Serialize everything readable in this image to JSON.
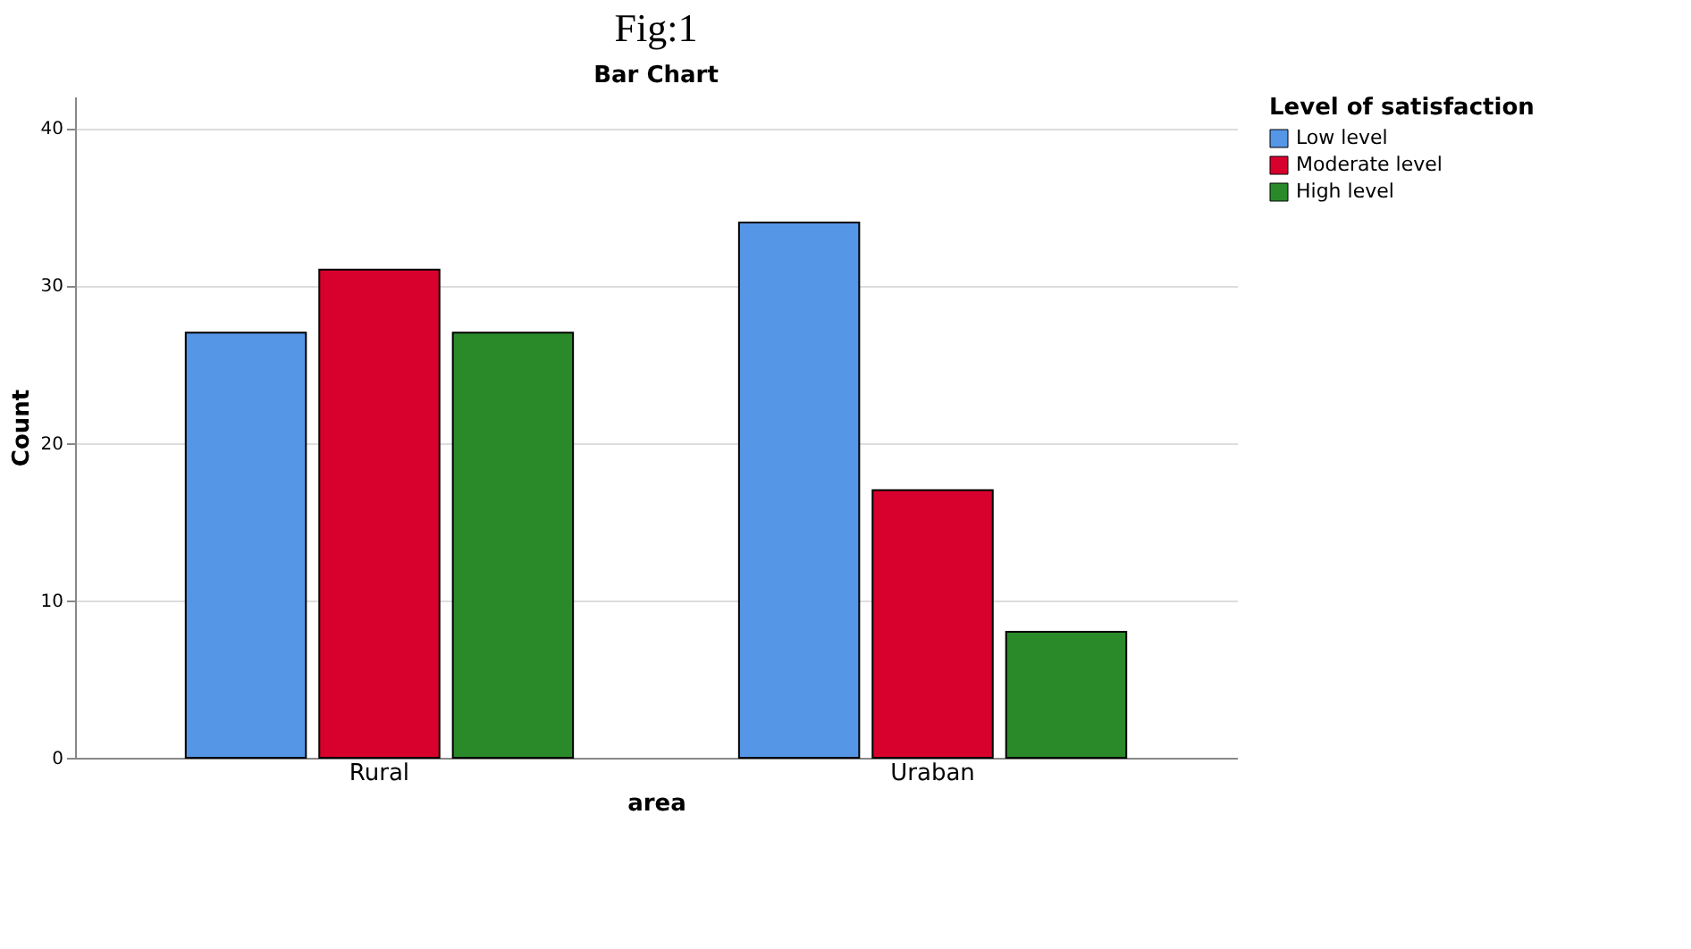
{
  "chart_data": {
    "type": "bar",
    "title": "Fig:1",
    "subtitle": "Bar Chart",
    "xlabel": "area",
    "ylabel": "Count",
    "legend_title": "Level of satisfaction",
    "categories": [
      "Rural",
      "Uraban"
    ],
    "series": [
      {
        "name": "Low level",
        "color": "#5596e6",
        "values": [
          27,
          34
        ]
      },
      {
        "name": "Moderate level",
        "color": "#d8002d",
        "values": [
          31,
          17
        ]
      },
      {
        "name": "High level",
        "color": "#2a8a2a",
        "values": [
          27,
          8
        ]
      }
    ],
    "ylim": [
      0,
      42
    ],
    "yticks": [
      0,
      10,
      20,
      30,
      40
    ],
    "grid": "y",
    "legend": "top right"
  }
}
